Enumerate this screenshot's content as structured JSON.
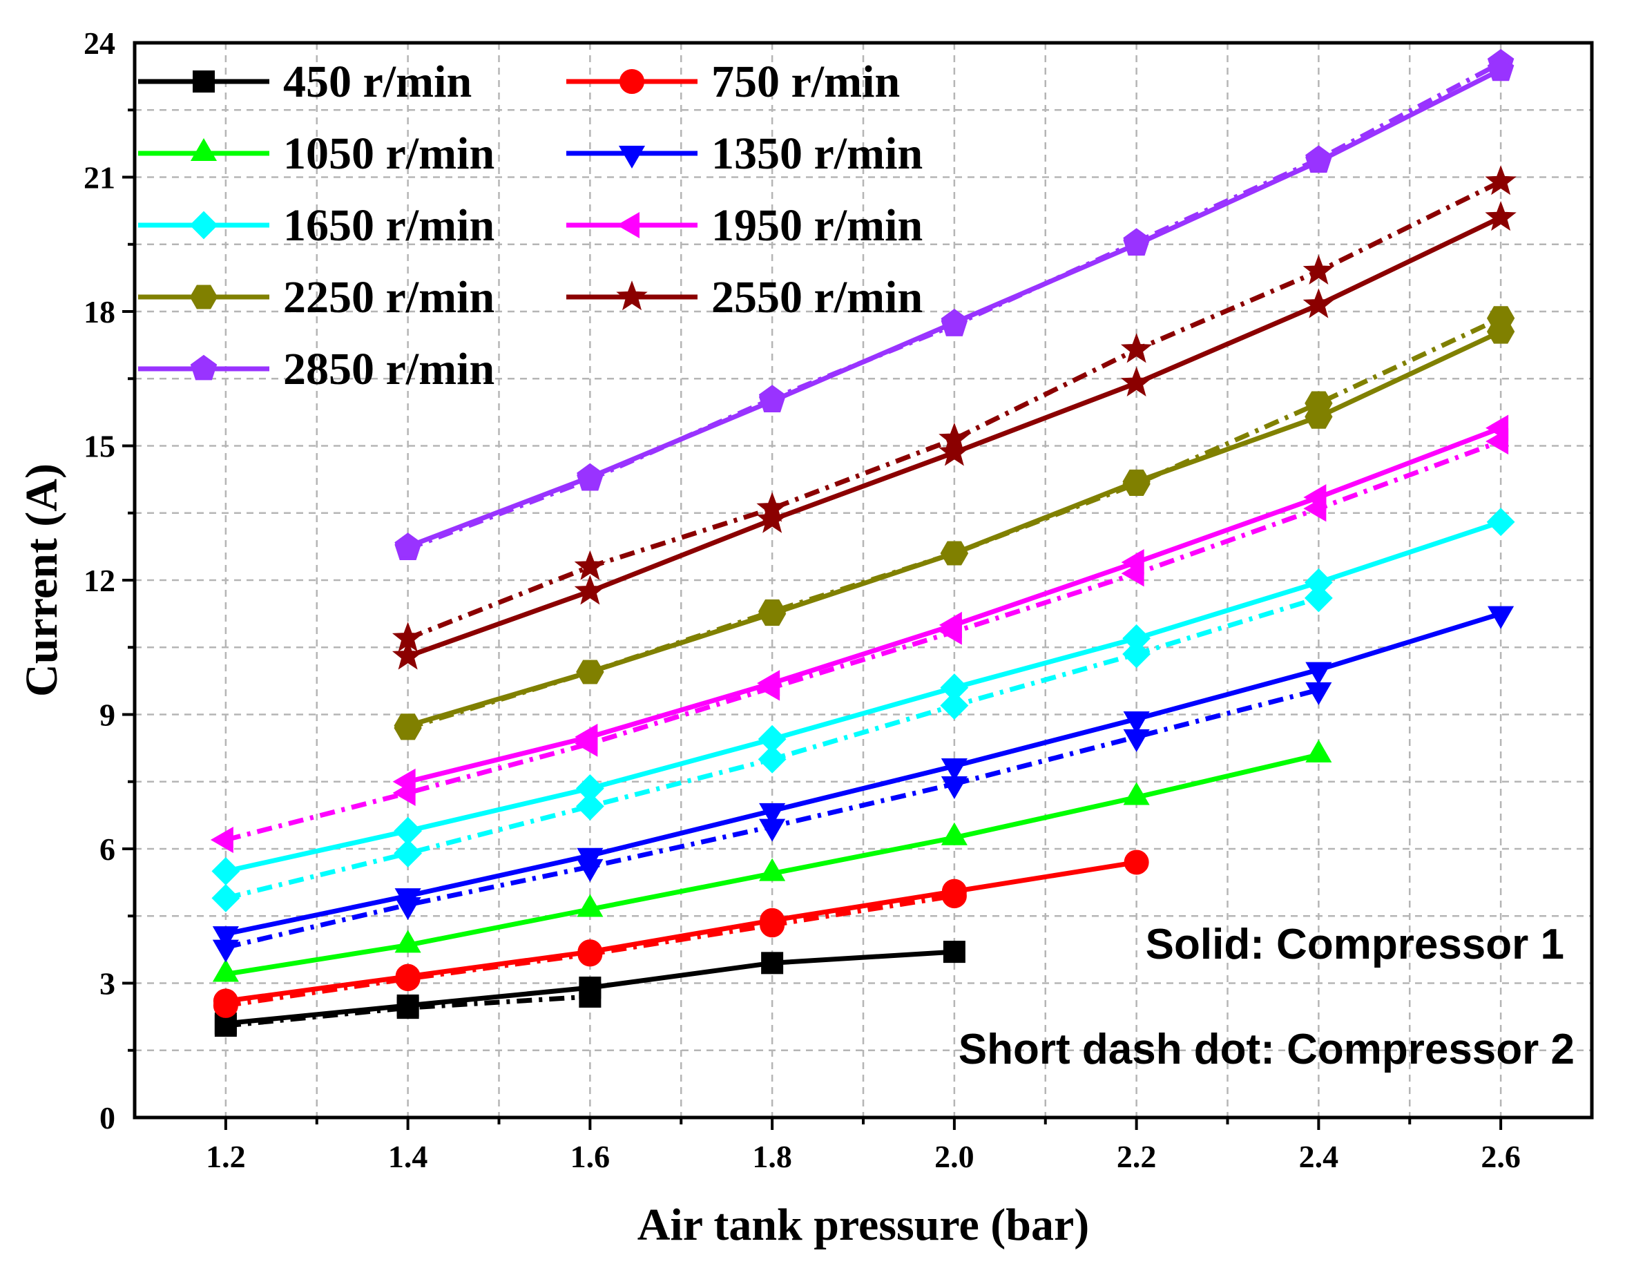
{
  "chart_data": {
    "type": "line",
    "xlabel": "Air tank pressure (bar)",
    "ylabel": "Current (A)",
    "xlim": [
      1.1,
      2.7
    ],
    "ylim": [
      0,
      24
    ],
    "x_ticks": [
      "1.2",
      "1.4",
      "1.6",
      "1.8",
      "2.0",
      "2.2",
      "2.4",
      "2.6"
    ],
    "y_ticks": [
      "0",
      "3",
      "6",
      "9",
      "12",
      "15",
      "18",
      "21",
      "24"
    ],
    "grid": true,
    "legend_position": "top-left",
    "annotations": [
      "Solid: Compressor 1",
      "Short dash dot: Compressor 2"
    ],
    "series": [
      {
        "name": "450 r/min",
        "color": "#000000",
        "marker": "square",
        "x": [
          1.2,
          1.4,
          1.6,
          1.8,
          2.0
        ],
        "compressor_1": [
          2.1,
          2.5,
          2.9,
          3.45,
          3.7
        ],
        "compressor_2": [
          2.05,
          2.45,
          2.7
        ]
      },
      {
        "name": "750 r/min",
        "color": "#ff0000",
        "marker": "circle",
        "x": [
          1.2,
          1.4,
          1.6,
          1.8,
          2.0,
          2.2
        ],
        "compressor_1": [
          2.6,
          3.15,
          3.7,
          4.4,
          5.05,
          5.7
        ],
        "compressor_2": [
          2.5,
          3.1,
          3.65,
          4.3,
          4.95
        ]
      },
      {
        "name": "1050 r/min",
        "color": "#00ff00",
        "marker": "triangle-up",
        "x": [
          1.2,
          1.4,
          1.6,
          1.8,
          2.0,
          2.2,
          2.4
        ],
        "compressor_1": [
          3.2,
          3.85,
          4.65,
          5.45,
          6.25,
          7.15,
          8.1
        ],
        "compressor_2": []
      },
      {
        "name": "1350 r/min",
        "color": "#0000ff",
        "marker": "triangle-down",
        "x": [
          1.2,
          1.4,
          1.6,
          1.8,
          2.0,
          2.2,
          2.4,
          2.6
        ],
        "compressor_1": [
          4.1,
          4.95,
          5.85,
          6.85,
          7.85,
          8.9,
          10.0,
          11.25
        ],
        "compressor_2": [
          3.8,
          4.75,
          5.6,
          6.5,
          7.45,
          8.5,
          9.55
        ]
      },
      {
        "name": "1650 r/min",
        "color": "#00ffff",
        "marker": "diamond",
        "x": [
          1.2,
          1.4,
          1.6,
          1.8,
          2.0,
          2.2,
          2.4,
          2.6
        ],
        "compressor_1": [
          5.5,
          6.4,
          7.35,
          8.45,
          9.6,
          10.7,
          11.95,
          13.3
        ],
        "compressor_2": [
          4.9,
          5.9,
          6.95,
          8.0,
          9.2,
          10.35,
          11.6
        ]
      },
      {
        "name": "1950 r/min",
        "color": "#ff00ff",
        "marker": "triangle-left",
        "x": [
          1.2,
          1.4,
          1.6,
          1.8,
          2.0,
          2.2,
          2.4,
          2.6
        ],
        "compressor_1": [
          null,
          7.5,
          8.5,
          9.7,
          11.0,
          12.4,
          13.85,
          15.4
        ],
        "compressor_2": [
          6.2,
          7.25,
          8.35,
          9.6,
          10.85,
          12.15,
          13.6,
          15.1
        ]
      },
      {
        "name": "2250 r/min",
        "color": "#808000",
        "marker": "hexagon",
        "x": [
          1.4,
          1.6,
          1.8,
          2.0,
          2.2,
          2.4,
          2.6
        ],
        "compressor_1": [
          8.75,
          9.95,
          11.25,
          12.6,
          14.2,
          15.65,
          17.55
        ],
        "compressor_2": [
          8.7,
          9.95,
          11.3,
          12.6,
          14.15,
          15.95,
          17.85
        ]
      },
      {
        "name": "2550 r/min",
        "color": "#8b0000",
        "marker": "star",
        "x": [
          1.4,
          1.6,
          1.8,
          2.0,
          2.2,
          2.4,
          2.6
        ],
        "compressor_1": [
          10.3,
          11.75,
          13.35,
          14.85,
          16.4,
          18.15,
          20.1
        ],
        "compressor_2": [
          10.7,
          12.3,
          13.6,
          15.15,
          17.15,
          18.9,
          20.9
        ]
      },
      {
        "name": "2850 r/min",
        "color": "#9933ff",
        "marker": "pentagon",
        "x": [
          1.4,
          1.6,
          1.8,
          2.0,
          2.2,
          2.4,
          2.6
        ],
        "compressor_1": [
          12.75,
          14.3,
          16.0,
          17.75,
          19.5,
          21.35,
          23.4
        ],
        "compressor_2": [
          12.7,
          14.25,
          16.05,
          17.7,
          19.55,
          21.4,
          23.55
        ]
      }
    ]
  }
}
